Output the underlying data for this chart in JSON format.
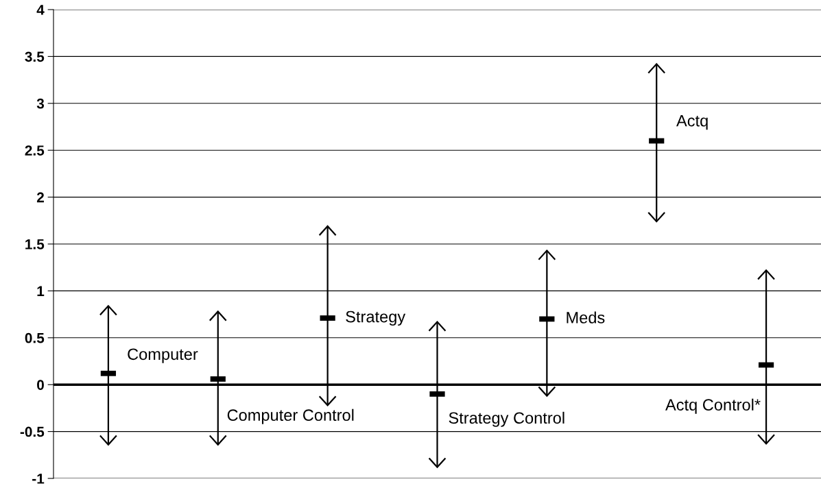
{
  "chart_data": {
    "type": "scatter",
    "categories": [
      null,
      null,
      null,
      null,
      null,
      null,
      null
    ],
    "values": [
      0.12,
      0.06,
      0.71,
      -0.1,
      0.7,
      2.6,
      0.21
    ],
    "errors": [
      [
        -0.64,
        0.84
      ],
      [
        -0.64,
        0.78
      ],
      [
        -0.22,
        1.69
      ],
      [
        -0.88,
        0.67
      ],
      [
        -0.12,
        1.43
      ],
      [
        1.74,
        3.42
      ],
      [
        -0.63,
        1.22
      ]
    ],
    "color": "#000000",
    "annotations": [
      "Computer",
      "Computer Control",
      "Strategy",
      "Strategy Control",
      "Meds",
      "Actq",
      "Actq Control*"
    ],
    "ylim": [
      -1,
      4
    ],
    "yticks": [
      {
        "value": -1,
        "label": "-1"
      },
      {
        "value": -0.5,
        "label": "-0.5"
      },
      0,
      0.5,
      1,
      1.5,
      2,
      2.5,
      3,
      3.5,
      4
    ],
    "ref_lines": [
      {
        "axis": "y",
        "value": 0,
        "color": "#000000"
      }
    ],
    "grid": "y",
    "tick_labels": "y"
  }
}
